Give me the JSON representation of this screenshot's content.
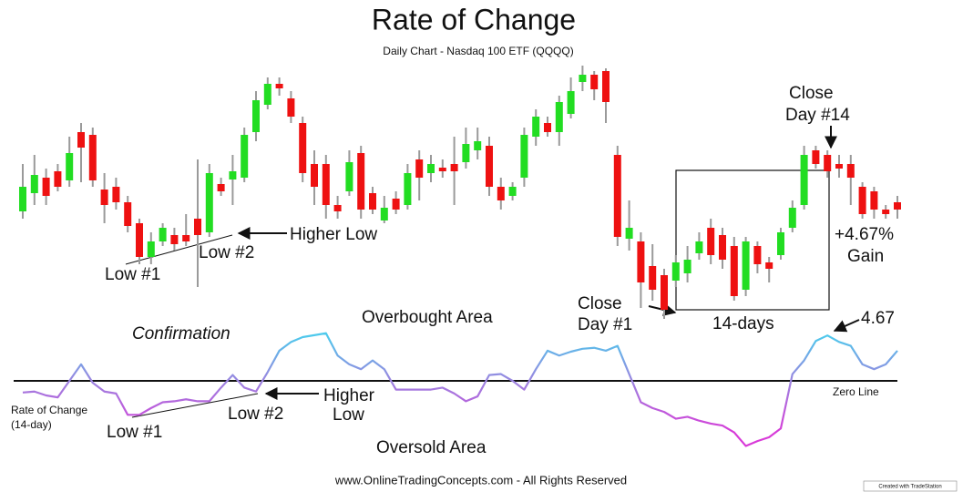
{
  "chart_data": [
    {
      "type": "candlestick",
      "title": "Rate of Change",
      "subtitle": "Daily Chart - Nasdaq 100 ETF (QQQQ)",
      "up_color": "#22dd22",
      "down_color": "#ee1111",
      "wick_color": "#9a9a9a",
      "ylim": [
        0,
        280
      ],
      "open": [
        118,
        138,
        155,
        162,
        152,
        205,
        202,
        142,
        145,
        128,
        105,
        68,
        85,
        92,
        92,
        110,
        95,
        148,
        153,
        155,
        205,
        235,
        258,
        242,
        215,
        170,
        170,
        125,
        140,
        182,
        138,
        108,
        132,
        125,
        175,
        160,
        166,
        170,
        172,
        185,
        190,
        145,
        135,
        155,
        200,
        215,
        205,
        225,
        260,
        268,
        272,
        180,
        88,
        85,
        58,
        48,
        42,
        50,
        72,
        100,
        92,
        80,
        32,
        80,
        62,
        70,
        100,
        125,
        185,
        180,
        170,
        170,
        145,
        140,
        120,
        128
      ],
      "high": [
        170,
        180,
        165,
        170,
        200,
        215,
        210,
        160,
        155,
        135,
        110,
        95,
        105,
        100,
        115,
        175,
        170,
        155,
        180,
        210,
        250,
        265,
        265,
        250,
        222,
        185,
        180,
        135,
        185,
        190,
        145,
        135,
        140,
        170,
        185,
        180,
        175,
        200,
        210,
        210,
        200,
        155,
        150,
        210,
        230,
        222,
        245,
        265,
        278,
        272,
        275,
        190,
        130,
        95,
        82,
        55,
        70,
        80,
        95,
        110,
        100,
        90,
        90,
        85,
        68,
        100,
        130,
        190,
        190,
        185,
        180,
        180,
        150,
        145,
        125,
        135
      ],
      "low": [
        110,
        125,
        125,
        140,
        145,
        150,
        145,
        105,
        120,
        95,
        60,
        60,
        80,
        75,
        80,
        35,
        90,
        135,
        125,
        150,
        195,
        230,
        245,
        215,
        150,
        125,
        110,
        110,
        135,
        110,
        115,
        105,
        115,
        120,
        130,
        150,
        155,
        125,
        165,
        175,
        135,
        120,
        130,
        145,
        190,
        200,
        190,
        220,
        250,
        240,
        215,
        80,
        75,
        12,
        20,
        0,
        35,
        40,
        65,
        60,
        55,
        20,
        25,
        50,
        40,
        65,
        95,
        120,
        165,
        155,
        155,
        125,
        110,
        110,
        110,
        110
      ],
      "close": [
        145,
        158,
        135,
        145,
        182,
        188,
        152,
        125,
        128,
        102,
        68,
        85,
        100,
        82,
        85,
        92,
        160,
        140,
        162,
        202,
        240,
        258,
        253,
        222,
        160,
        145,
        125,
        118,
        172,
        120,
        120,
        122,
        120,
        160,
        155,
        170,
        162,
        162,
        192,
        195,
        145,
        130,
        145,
        202,
        222,
        205,
        238,
        250,
        268,
        252,
        238,
        90,
        100,
        40,
        32,
        10,
        62,
        65,
        85,
        70,
        65,
        25,
        85,
        60,
        55,
        95,
        122,
        180,
        170,
        162,
        165,
        155,
        115,
        120,
        115,
        120
      ],
      "annotations": [
        {
          "lines": [
            "Low #1"
          ]
        },
        {
          "lines": [
            "Low #2"
          ]
        },
        {
          "lines": [
            "Higher Low"
          ]
        },
        {
          "lines": [
            "Close",
            "Day #1"
          ]
        },
        {
          "lines": [
            "Close",
            "Day #14"
          ]
        },
        {
          "lines": [
            "14-days"
          ]
        },
        {
          "lines": [
            "+4.67%",
            "Gain"
          ]
        }
      ]
    },
    {
      "type": "line",
      "ylim": [
        -7.5,
        6
      ],
      "series": [
        {
          "name": "Rate of Change (14-day)",
          "colors": [
            "#4ec9ec",
            "#9b86e0",
            "#d83ad8"
          ],
          "values": [
            -1.2,
            -1.1,
            -1.5,
            -1.7,
            0,
            1.7,
            -0.2,
            -1.1,
            -1.3,
            -3.5,
            -3.5,
            -2.8,
            -2.2,
            -2.1,
            -1.9,
            -2.1,
            -2.1,
            -0.7,
            0.6,
            -0.7,
            -1.1,
            0.9,
            3.1,
            4.0,
            4.5,
            4.7,
            4.9,
            2.6,
            1.7,
            1.2,
            2.1,
            1.2,
            -0.9,
            -0.9,
            -0.9,
            -0.9,
            -0.7,
            -1.3,
            -2.1,
            -1.6,
            0.6,
            0.7,
            0,
            -0.9,
            1.2,
            3.1,
            2.6,
            3.0,
            3.3,
            3.4,
            3.1,
            3.6,
            0.7,
            -2.2,
            -2.8,
            -3.2,
            -3.9,
            -3.7,
            -4.1,
            -4.4,
            -4.6,
            -5.3,
            -6.7,
            -6.2,
            -5.8,
            -4.9,
            0.7,
            2.1,
            4.1,
            4.67,
            4.0,
            3.6,
            1.7,
            1.2,
            1.7,
            3.1
          ]
        }
      ],
      "legend_lines": [
        "Rate of Change",
        "(14-day)"
      ],
      "reference_line": {
        "value": 0,
        "label": "Zero Line"
      },
      "annotations": [
        {
          "lines": [
            "Confirmation"
          ]
        },
        {
          "lines": [
            "Overbought Area"
          ]
        },
        {
          "lines": [
            "Oversold Area"
          ]
        },
        {
          "lines": [
            "Low #1"
          ]
        },
        {
          "lines": [
            "Low #2"
          ]
        },
        {
          "lines": [
            "Higher",
            "Low"
          ]
        }
      ]
    }
  ],
  "footer": "www.OnlineTradingConcepts.com - All Rights Reserved",
  "badge": "Created with TradeStation"
}
